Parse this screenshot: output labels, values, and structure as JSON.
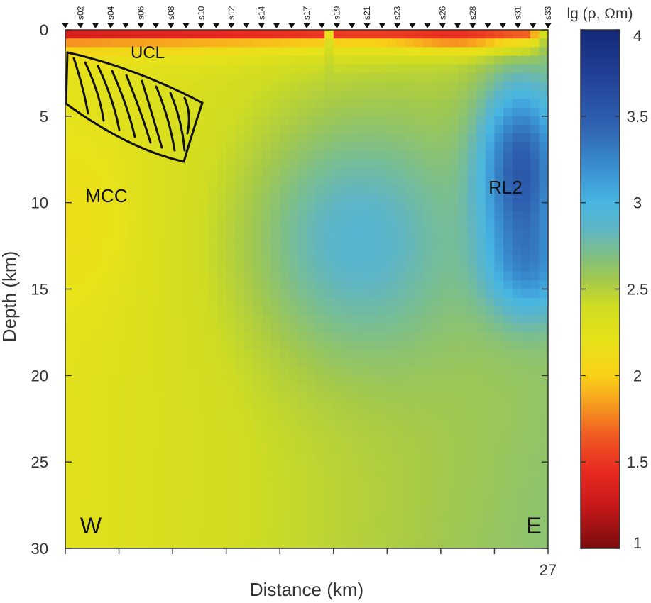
{
  "chart_data": {
    "type": "heatmap",
    "title": "",
    "xlabel": "Distance (km)",
    "ylabel": "Depth (km)",
    "xlim": [
      0,
      27
    ],
    "ylim": [
      0,
      30
    ],
    "x_tick_labels": [
      "27"
    ],
    "y_ticks": [
      0,
      5,
      10,
      15,
      20,
      25,
      30
    ],
    "y_tick_labels": [
      "0",
      "5",
      "10",
      "15",
      "20",
      "25",
      "30"
    ],
    "colorbar": {
      "label": "lg (ρ, Ωm)",
      "range": [
        1,
        4
      ],
      "ticks": [
        1,
        1.5,
        2,
        2.5,
        3,
        3.5,
        4
      ],
      "tick_labels": [
        "1",
        "1.5",
        "2",
        "2.5",
        "3",
        "3.5",
        "4"
      ],
      "colors": [
        {
          "v": 1.0,
          "c": "#7a0b0c"
        },
        {
          "v": 1.25,
          "c": "#c8181a"
        },
        {
          "v": 1.45,
          "c": "#e82a20"
        },
        {
          "v": 1.65,
          "c": "#f05a22"
        },
        {
          "v": 1.85,
          "c": "#f7a21f"
        },
        {
          "v": 2.0,
          "c": "#f9d118"
        },
        {
          "v": 2.2,
          "c": "#e8e21a"
        },
        {
          "v": 2.4,
          "c": "#cfdc21"
        },
        {
          "v": 2.55,
          "c": "#a4c94a"
        },
        {
          "v": 2.7,
          "c": "#7ebf88"
        },
        {
          "v": 2.85,
          "c": "#5eb5c5"
        },
        {
          "v": 3.0,
          "c": "#47b6e2"
        },
        {
          "v": 3.2,
          "c": "#3a8fd0"
        },
        {
          "v": 3.45,
          "c": "#2f62b0"
        },
        {
          "v": 3.7,
          "c": "#23449a"
        },
        {
          "v": 4.0,
          "c": "#142878"
        }
      ]
    },
    "stations": {
      "count": 33,
      "labels": [
        "s02",
        "s04",
        "s06",
        "s08",
        "s10",
        "s12",
        "s14",
        "s17",
        "s19",
        "s21",
        "s23",
        "s26",
        "s28",
        "s31",
        "s33"
      ]
    },
    "annotations": [
      "UCL",
      "MCC",
      "RL2",
      "W",
      "E"
    ],
    "grid": false
  }
}
